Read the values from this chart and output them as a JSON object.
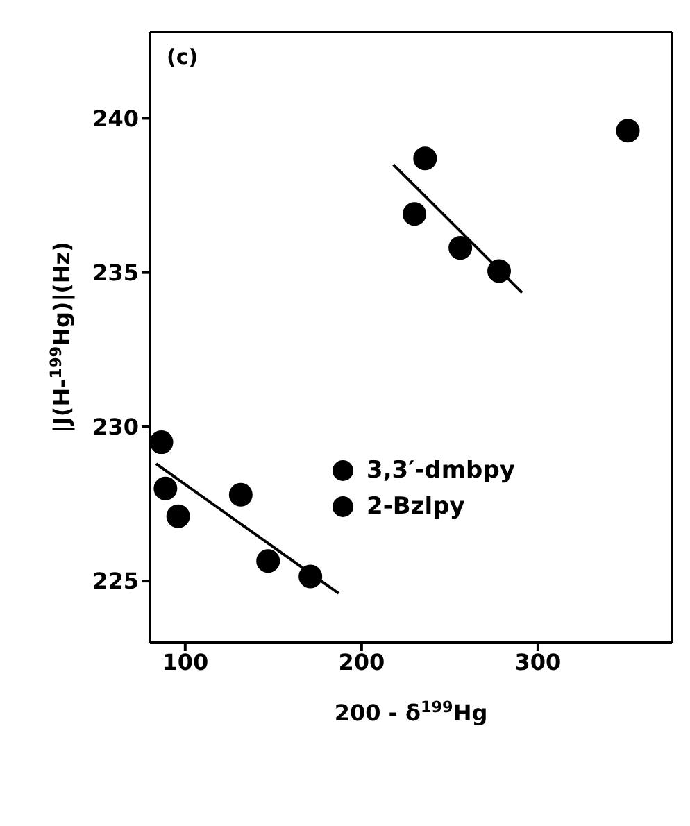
{
  "chart_data": {
    "type": "scatter",
    "xlabel": "200 - δ$^{199}$Hg",
    "ylabel": "|J(H-$^{199}$Hg)|(Hz)",
    "annotations": [
      "(c)"
    ],
    "xlim": [
      80,
      376
    ],
    "xticks": [
      100,
      200,
      300
    ],
    "ylim": [
      223,
      242.8
    ],
    "yticks": [
      225,
      230,
      235,
      240
    ],
    "grid": false,
    "legend": "center",
    "marker": "circle",
    "series": [
      {
        "name": "3,3′-dmbpy",
        "color": "#000000",
        "x": [
          230,
          236,
          256,
          278,
          351
        ],
        "values": [
          236.9,
          238.7,
          235.8,
          235.05,
          239.6
        ]
      },
      {
        "name": "2-Bzlpy",
        "color": "#000000",
        "x": [
          86.5,
          88.8,
          96,
          131.5,
          147,
          171
        ],
        "values": [
          229.5,
          228.0,
          227.1,
          227.8,
          225.65,
          225.15
        ]
      },
      {
        "type": "line",
        "marker": "none",
        "color": "#000000",
        "x": [
          218,
          291
        ],
        "values": [
          238.5,
          234.35
        ]
      },
      {
        "type": "line",
        "marker": "none",
        "color": "#000000",
        "x": [
          83.5,
          187
        ],
        "values": [
          228.8,
          224.6
        ]
      }
    ]
  }
}
